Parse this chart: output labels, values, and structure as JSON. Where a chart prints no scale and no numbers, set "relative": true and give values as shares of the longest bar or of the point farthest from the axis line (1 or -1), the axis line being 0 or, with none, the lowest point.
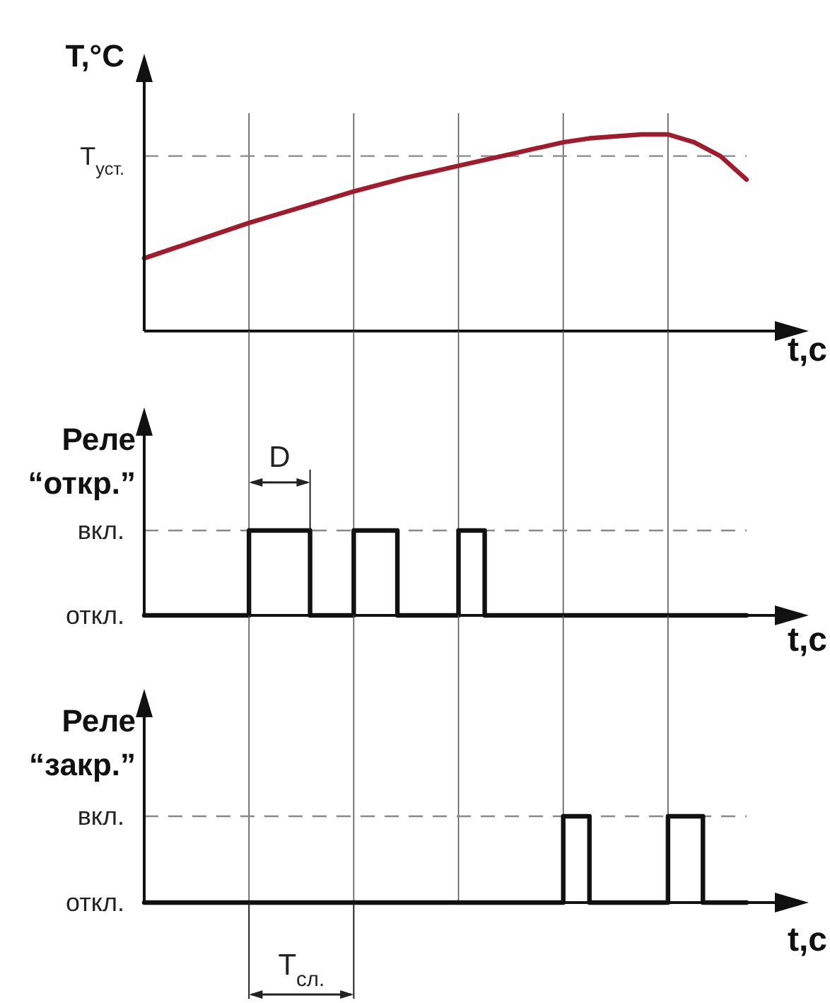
{
  "chart_data": [
    {
      "type": "line",
      "relative": true,
      "ylabel": "T,°C",
      "xlabel": "t,c",
      "grid": "x",
      "categories": [
        null,
        null,
        null,
        null,
        null,
        null,
        null,
        null,
        null,
        null,
        null,
        null,
        null,
        null,
        null,
        null,
        null,
        null,
        null,
        null,
        null,
        null,
        null,
        null
      ],
      "values": [
        0.37,
        0.415,
        0.46,
        0.505,
        0.55,
        0.59,
        0.63,
        0.67,
        0.71,
        0.745,
        0.78,
        0.81,
        0.84,
        0.87,
        0.9,
        0.93,
        0.96,
        0.98,
        0.99,
        1.0,
        1.0,
        0.96,
        0.89,
        0.77
      ],
      "color": "#a01c2c",
      "ref_lines": [
        {
          "axis": "y",
          "value": 0.89,
          "label": "T$_{уст.}$",
          "color": "#888888",
          "line_style": "dashed"
        }
      ]
    },
    {
      "type": "step",
      "relative": true,
      "ylabel": "Реле\n“откр.”",
      "xlabel": "t,c",
      "grid": "x",
      "categories": [
        null,
        null,
        null,
        null,
        null,
        null,
        null,
        null,
        null,
        null,
        null,
        null,
        null,
        null,
        null,
        null,
        null,
        null,
        null,
        null,
        null,
        null,
        null,
        null,
        null,
        null,
        null,
        null,
        null,
        null,
        null,
        null,
        null,
        null,
        null,
        null,
        null,
        null,
        null,
        null,
        null,
        null,
        null,
        null,
        null,
        null,
        null,
        null,
        null,
        null,
        null,
        null,
        null,
        null,
        null,
        null,
        null,
        null,
        null,
        null,
        null,
        null,
        null,
        null,
        null,
        null,
        null,
        null,
        null,
        null
      ],
      "values": [
        0,
        0,
        0,
        0,
        0,
        0,
        0,
        0,
        0,
        0,
        0,
        0,
        1,
        1,
        1,
        1,
        1,
        1,
        1,
        0,
        0,
        0,
        0,
        0,
        1,
        1,
        1,
        1,
        1,
        0,
        0,
        0,
        0,
        0,
        0,
        0,
        1,
        1,
        1,
        0,
        0,
        0,
        0,
        0,
        0,
        0,
        0,
        0,
        0,
        0,
        0,
        0,
        0,
        0,
        0,
        0,
        0,
        0,
        0,
        0,
        0,
        0,
        0,
        0,
        0,
        0,
        0,
        0,
        0,
        0
      ],
      "color": "#111111",
      "ref_lines": [
        {
          "axis": "y",
          "value": 1,
          "label": "вкл.",
          "color": "#888888",
          "line_style": "dashed"
        },
        {
          "axis": "y",
          "value": 0,
          "label": "откл.",
          "color": "#111111"
        }
      ],
      "annotations": [
        "D"
      ]
    },
    {
      "type": "step",
      "relative": true,
      "ylabel": "Реле\n“закр.”",
      "xlabel": "t,c",
      "grid": "x",
      "categories": [
        null,
        null,
        null,
        null,
        null,
        null,
        null,
        null,
        null,
        null,
        null,
        null,
        null,
        null,
        null,
        null,
        null,
        null,
        null,
        null,
        null,
        null,
        null,
        null,
        null,
        null,
        null,
        null,
        null,
        null,
        null,
        null,
        null,
        null,
        null,
        null,
        null,
        null,
        null,
        null,
        null,
        null,
        null,
        null,
        null,
        null,
        null,
        null,
        null,
        null,
        null,
        null,
        null,
        null,
        null,
        null,
        null,
        null,
        null,
        null,
        null,
        null,
        null,
        null,
        null,
        null,
        null,
        null,
        null,
        null
      ],
      "values": [
        0,
        0,
        0,
        0,
        0,
        0,
        0,
        0,
        0,
        0,
        0,
        0,
        0,
        0,
        0,
        0,
        0,
        0,
        0,
        0,
        0,
        0,
        0,
        0,
        0,
        0,
        0,
        0,
        0,
        0,
        0,
        0,
        0,
        0,
        0,
        0,
        0,
        0,
        0,
        0,
        0,
        0,
        0,
        0,
        0,
        0,
        0,
        0,
        1,
        1,
        1,
        0,
        0,
        0,
        0,
        0,
        0,
        0,
        0,
        0,
        1,
        1,
        1,
        1,
        0,
        0,
        0,
        0,
        0,
        0
      ],
      "color": "#111111",
      "ref_lines": [
        {
          "axis": "y",
          "value": 1,
          "label": "вкл.",
          "color": "#888888",
          "line_style": "dashed"
        },
        {
          "axis": "y",
          "value": 0,
          "label": "откл.",
          "color": "#111111"
        }
      ],
      "annotations": [
        "T$_{сл.}$"
      ]
    }
  ]
}
